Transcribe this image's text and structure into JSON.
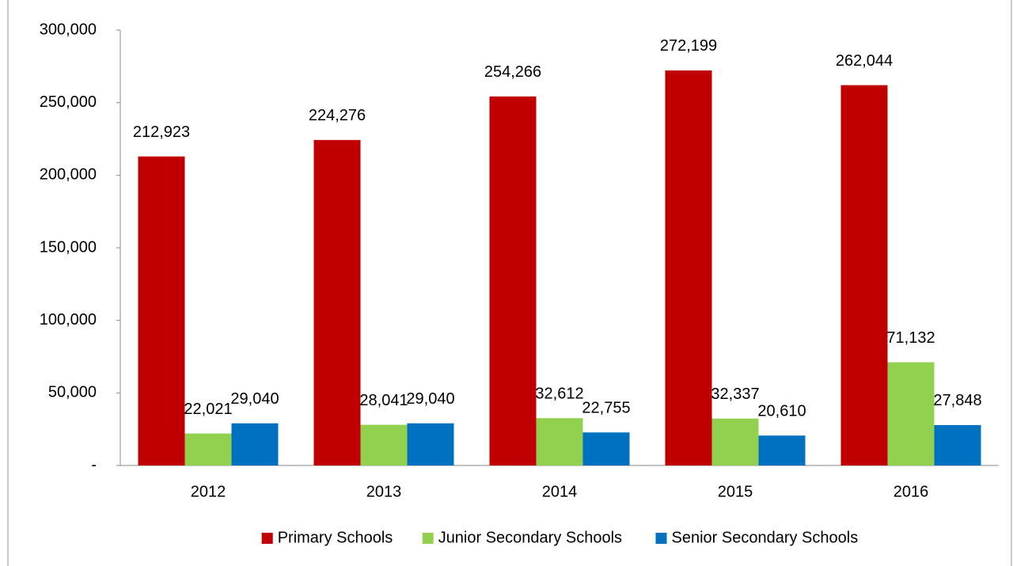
{
  "chart_data": {
    "type": "bar",
    "categories": [
      "2012",
      "2013",
      "2014",
      "2015",
      "2016"
    ],
    "series": [
      {
        "name": "Primary Schools",
        "color": "#c00000",
        "values": [
          212923,
          224276,
          254266,
          272199,
          262044
        ],
        "value_labels": [
          "212,923",
          "224,276",
          "254,266",
          "272,199",
          "262,044"
        ]
      },
      {
        "name": "Junior Secondary Schools",
        "color": "#92d050",
        "values": [
          22021,
          28041,
          32612,
          32337,
          71132
        ],
        "value_labels": [
          "22,021",
          "28,041",
          "32,612",
          "32,337",
          "71,132"
        ]
      },
      {
        "name": "Senior Secondary Schools",
        "color": "#0070c0",
        "values": [
          29040,
          29040,
          22755,
          20610,
          27848
        ],
        "value_labels": [
          "29,040",
          "29,040",
          "22,755",
          "20,610",
          "27,848"
        ]
      }
    ],
    "ylim": [
      0,
      300000
    ],
    "yticks": [
      {
        "value": 0,
        "label": "-"
      },
      {
        "value": 50000,
        "label": "50,000"
      },
      {
        "value": 100000,
        "label": "100,000"
      },
      {
        "value": 150000,
        "label": "150,000"
      },
      {
        "value": 200000,
        "label": "200,000"
      },
      {
        "value": 250000,
        "label": "250,000"
      },
      {
        "value": 300000,
        "label": "300,000"
      }
    ],
    "grid": false,
    "legend": "bottom"
  }
}
